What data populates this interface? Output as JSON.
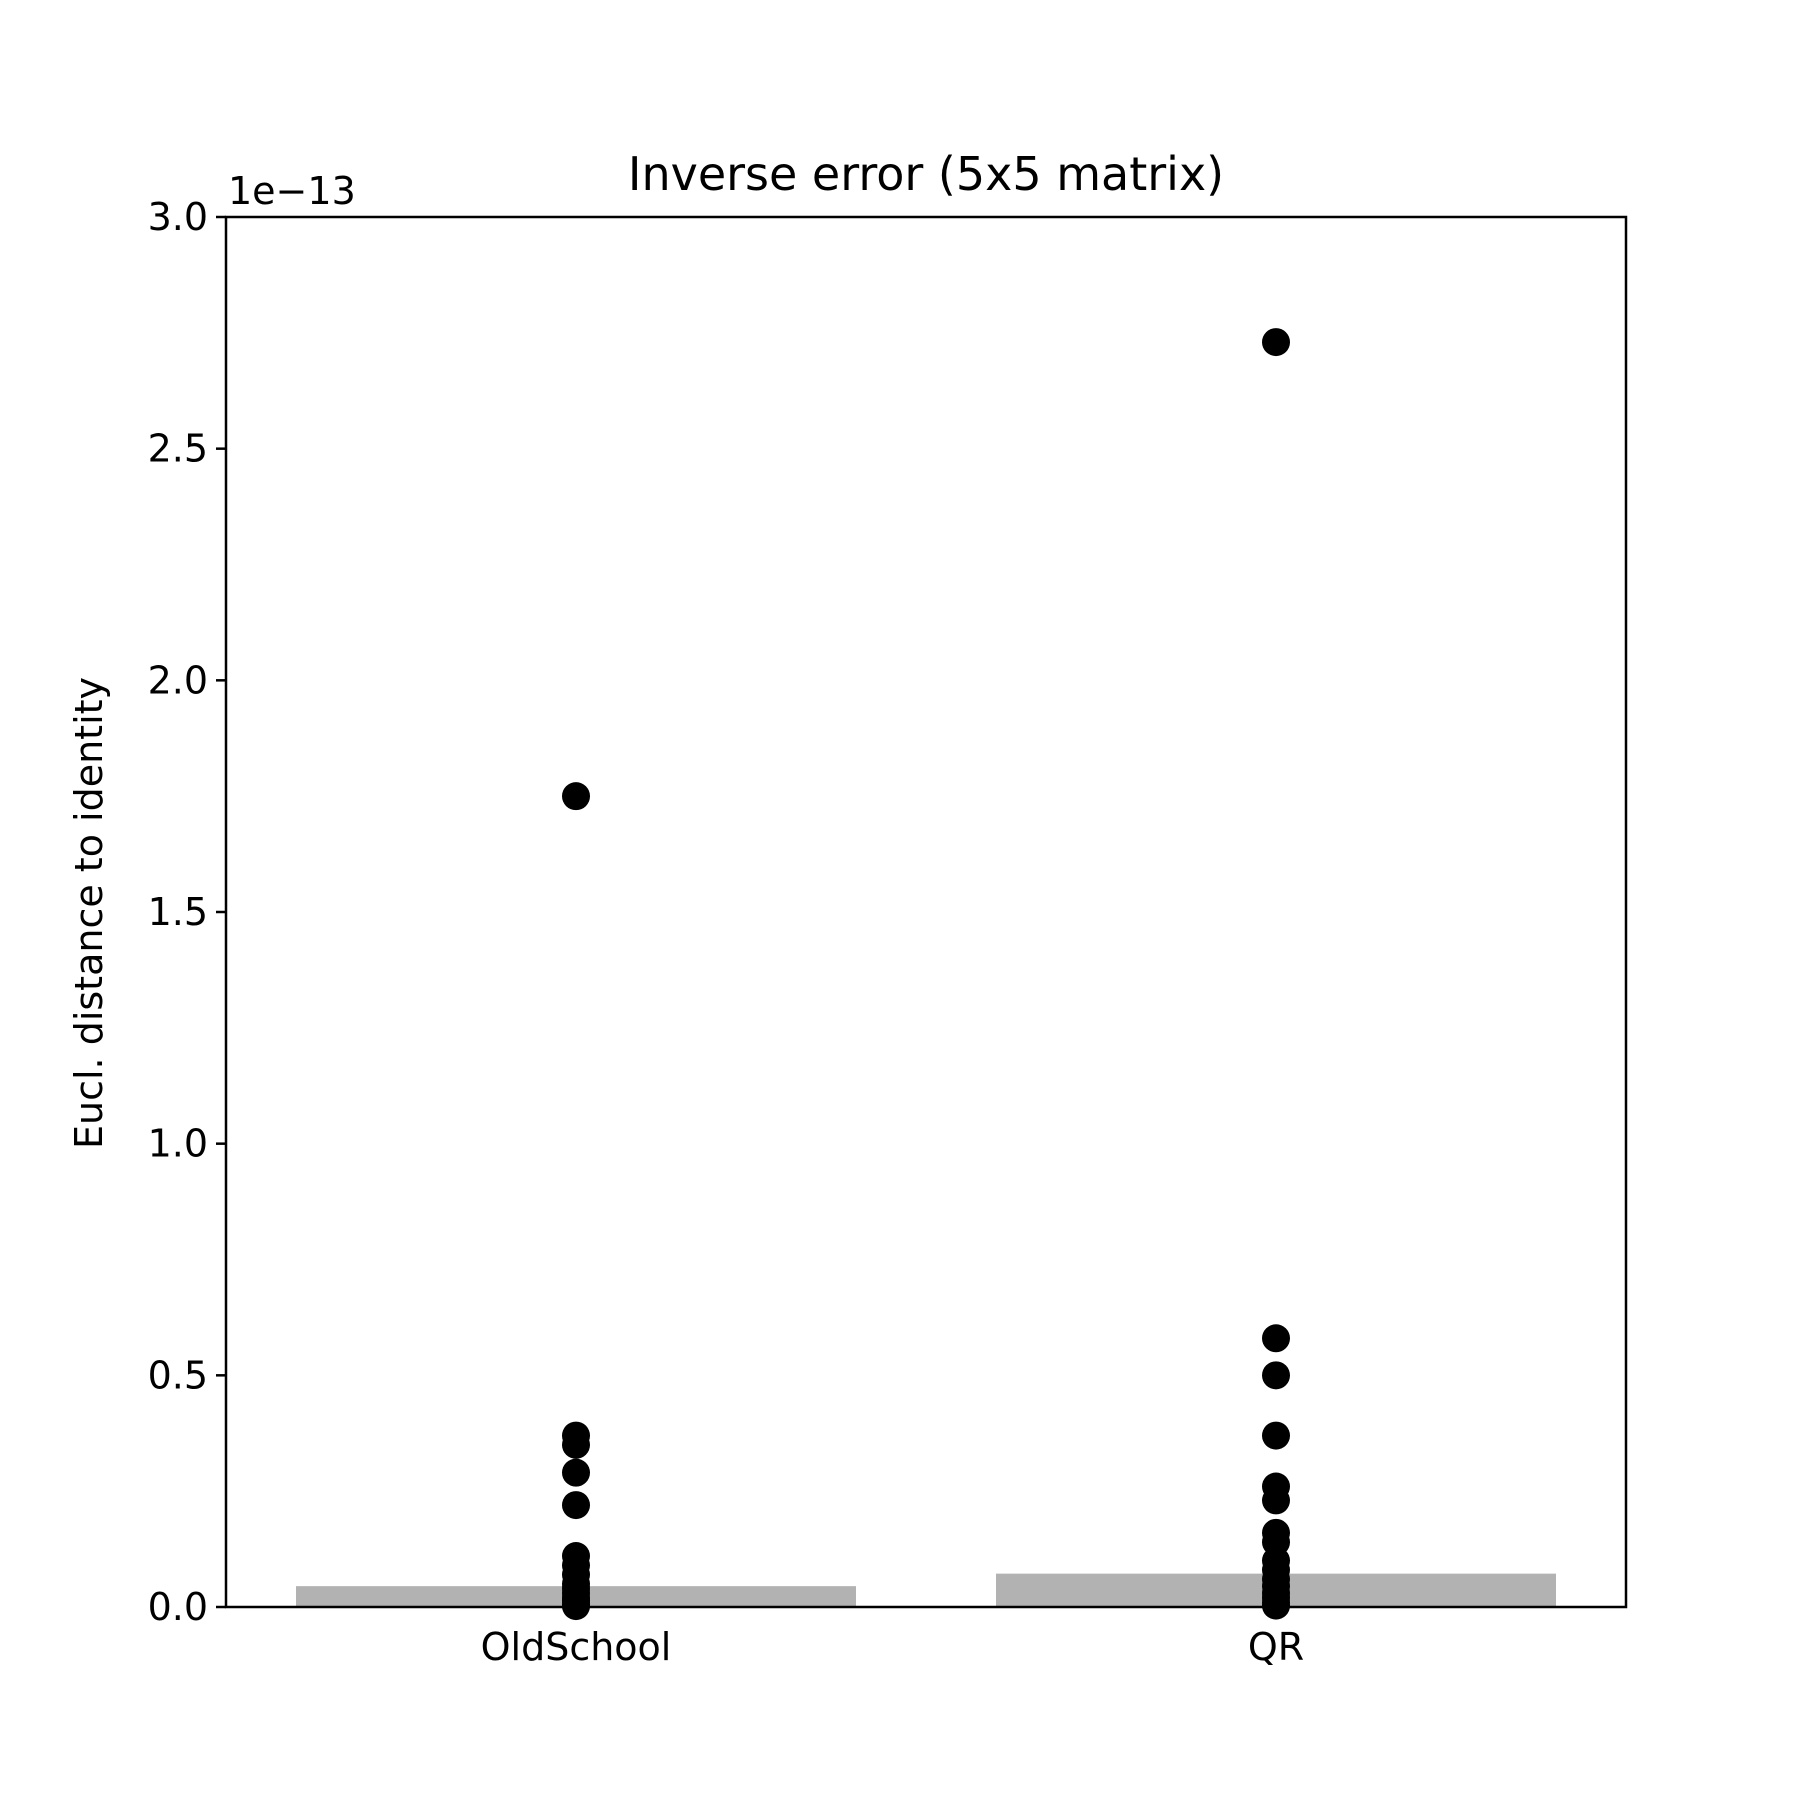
{
  "chart_data": {
    "type": "bar",
    "title": "Inverse error (5x5 matrix)",
    "xlabel": "",
    "ylabel": "Eucl. distance to identity",
    "y_offset_label": "1e−13",
    "y_scale_factor": 1e-13,
    "ylim": [
      0.0,
      3.0
    ],
    "yticks": [
      "0.0",
      "0.5",
      "1.0",
      "1.5",
      "2.0",
      "2.5",
      "3.0"
    ],
    "categories": [
      "OldSchool",
      "QR"
    ],
    "bar_values": [
      0.045,
      0.072
    ],
    "points": [
      [
        1.75,
        0.37,
        0.35,
        0.29,
        0.22,
        0.11,
        0.09,
        0.07,
        0.05,
        0.04,
        0.03,
        0.02,
        0.015,
        0.01,
        0.005,
        0.002
      ],
      [
        2.73,
        0.58,
        0.5,
        0.37,
        0.26,
        0.23,
        0.16,
        0.14,
        0.1,
        0.08,
        0.06,
        0.045,
        0.03,
        0.02,
        0.01,
        0.003
      ]
    ],
    "grid": false,
    "legend": "none",
    "colors": {
      "bar": "#b2b2b2",
      "point": "#000000",
      "axis": "#000000"
    }
  }
}
